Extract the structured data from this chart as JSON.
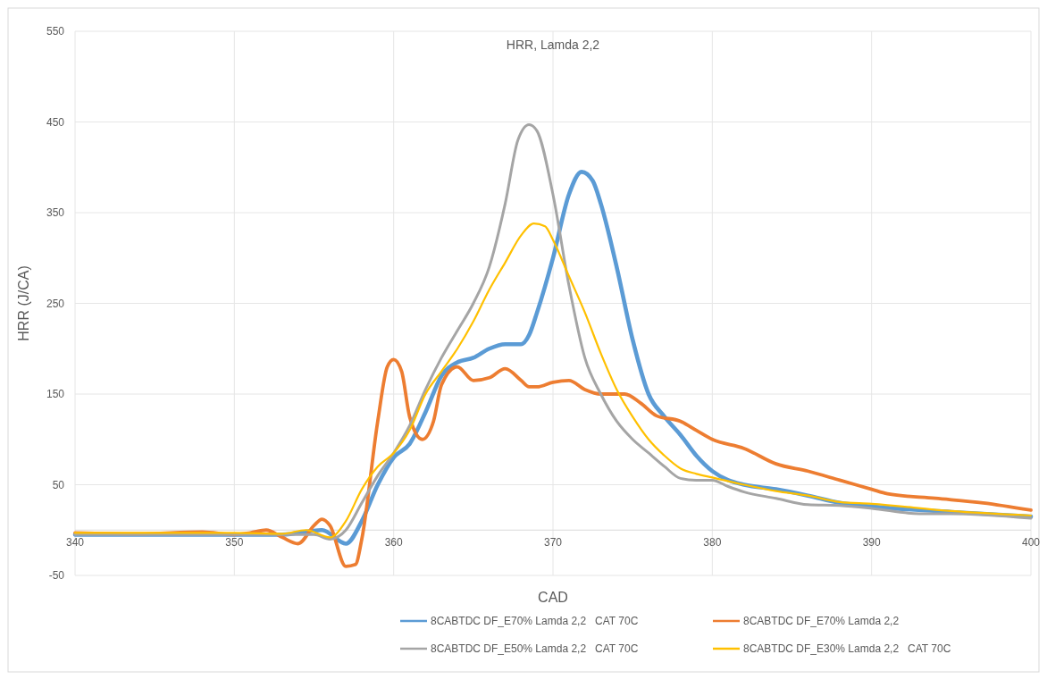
{
  "chart_data": {
    "type": "line",
    "title": "HRR, Lamda 2,2",
    "xlabel": "CAD",
    "ylabel": "HRR (J/CA)",
    "xlim": [
      340,
      400
    ],
    "xticks": [
      340,
      350,
      360,
      370,
      380,
      390,
      400
    ],
    "ylim": [
      -50,
      550
    ],
    "yticks": [
      -50,
      50,
      150,
      250,
      350,
      450,
      550
    ],
    "grid": true,
    "legend": "bottom",
    "marker": "none",
    "line_style": "solid",
    "series": [
      {
        "name": "8CABTDC DF_E70% Lamda 2,2   CAT 70C",
        "color": "#5b9bd5",
        "x": [
          340,
          350,
          353,
          355.5,
          357,
          358,
          359,
          360,
          361,
          362,
          363,
          364,
          365,
          366,
          367,
          368,
          368.5,
          369,
          370,
          371,
          371.8,
          372.5,
          373,
          374,
          375,
          376,
          377,
          378,
          379,
          380,
          381,
          382,
          384,
          386,
          388,
          390,
          395,
          400
        ],
        "values": [
          -5,
          -5,
          -5,
          0,
          -15,
          10,
          50,
          80,
          95,
          130,
          170,
          185,
          190,
          200,
          205,
          205,
          215,
          240,
          300,
          370,
          395,
          385,
          360,
          290,
          210,
          150,
          125,
          105,
          82,
          65,
          55,
          50,
          45,
          38,
          30,
          26,
          20,
          15
        ]
      },
      {
        "name": "8CABTDC DF_E70% Lamda 2,2",
        "color": "#ed7d31",
        "x": [
          340,
          344,
          348,
          350,
          351,
          352,
          353,
          354,
          355,
          355.5,
          356,
          357,
          357.6,
          358,
          359,
          359.6,
          360,
          360.5,
          361,
          361.8,
          362.5,
          363,
          364,
          365,
          366,
          367,
          368,
          368.5,
          369,
          370,
          371,
          372,
          373,
          374.5,
          375.5,
          376.5,
          378,
          379,
          380,
          382,
          384,
          386,
          388,
          390,
          391,
          394,
          397,
          400
        ],
        "values": [
          -3,
          -4,
          -2,
          -5,
          -3,
          0,
          -8,
          -15,
          5,
          12,
          5,
          -40,
          -38,
          -10,
          120,
          180,
          188,
          175,
          125,
          100,
          120,
          160,
          180,
          165,
          168,
          178,
          165,
          158,
          158,
          163,
          165,
          155,
          150,
          150,
          140,
          126,
          120,
          110,
          100,
          90,
          73,
          65,
          55,
          45,
          40,
          35,
          30,
          22
        ]
      },
      {
        "name": "8CABTDC DF_E50% Lamda 2,2   CAT 70C",
        "color": "#a5a5a5",
        "x": [
          340,
          353,
          355,
          356,
          357,
          358,
          359,
          360,
          361,
          362,
          363,
          364,
          365,
          366,
          367,
          367.8,
          368.5,
          369,
          370,
          371,
          372,
          373,
          374,
          375,
          376,
          377,
          378,
          379,
          380,
          381,
          382,
          384,
          386,
          388,
          390,
          393,
          395,
          400
        ],
        "values": [
          -5,
          -5,
          -5,
          -10,
          0,
          30,
          60,
          85,
          115,
          155,
          190,
          220,
          250,
          290,
          360,
          430,
          447,
          440,
          370,
          270,
          190,
          150,
          120,
          100,
          85,
          70,
          57,
          55,
          55,
          48,
          42,
          35,
          28,
          27,
          24,
          18,
          18,
          13
        ]
      },
      {
        "name": "8CABTDC DF_E30% Lamda 2,2   CAT 70C",
        "color": "#ffc000",
        "x": [
          340,
          350,
          353,
          354.5,
          356,
          357,
          358,
          359,
          360,
          361,
          362,
          363,
          364,
          365,
          366,
          367,
          368,
          368.8,
          369.5,
          370,
          371,
          372,
          373,
          374,
          375,
          376,
          377,
          378,
          379,
          380,
          382,
          384,
          386,
          388,
          390,
          395,
          400
        ],
        "values": [
          -3,
          -3,
          -4,
          0,
          -8,
          10,
          45,
          70,
          85,
          110,
          150,
          175,
          200,
          230,
          265,
          295,
          325,
          338,
          335,
          320,
          280,
          240,
          195,
          155,
          125,
          100,
          82,
          68,
          62,
          58,
          50,
          43,
          38,
          31,
          29,
          21,
          16
        ]
      }
    ]
  }
}
